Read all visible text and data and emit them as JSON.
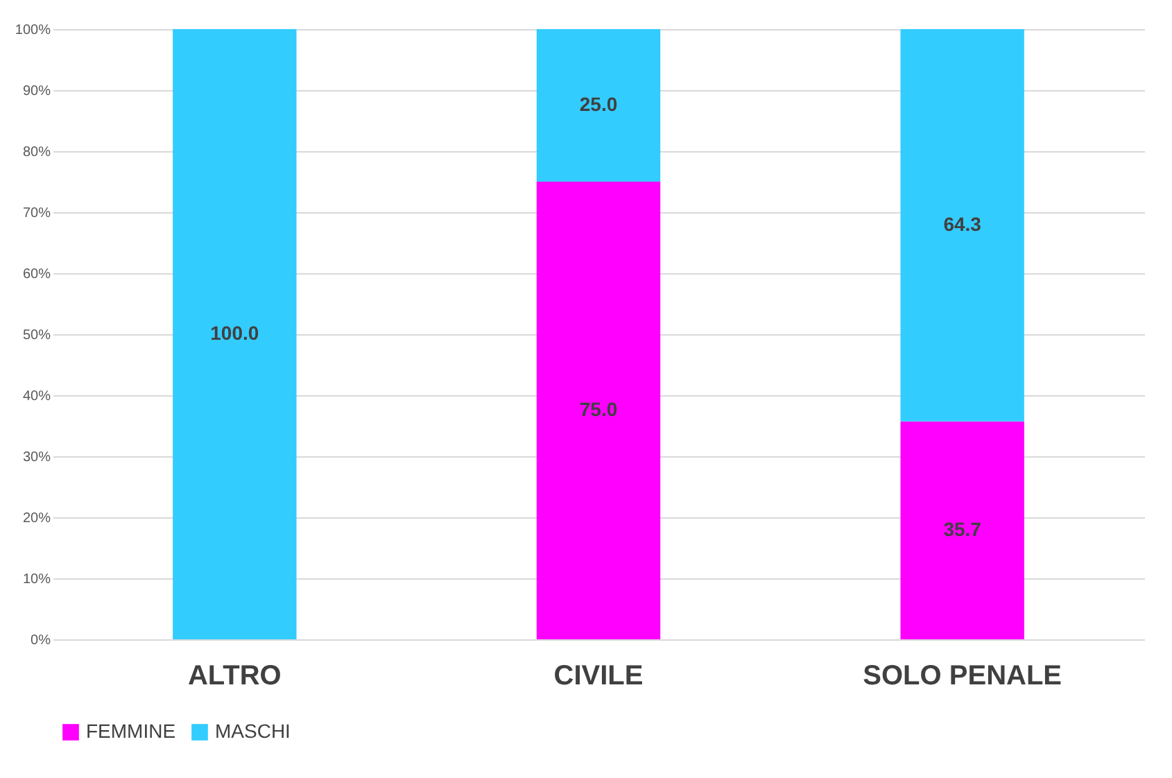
{
  "chart_data": {
    "type": "bar",
    "stacked": true,
    "categories": [
      "ALTRO",
      "CIVILE",
      "SOLO PENALE"
    ],
    "series": [
      {
        "name": "FEMMINE",
        "color": "#ff00ff",
        "values": [
          0,
          75.0,
          35.7
        ],
        "value_labels": [
          null,
          "75.0",
          "35.7"
        ]
      },
      {
        "name": "MASCHI",
        "color": "#33ccff",
        "values": [
          100.0,
          25.0,
          64.3
        ],
        "value_labels": [
          "100.0",
          "25.0",
          "64.3"
        ]
      }
    ],
    "ylim": [
      0,
      100
    ],
    "yticks": [
      {
        "value": 0,
        "label": "0%"
      },
      {
        "value": 10,
        "label": "10%"
      },
      {
        "value": 20,
        "label": "20%"
      },
      {
        "value": 30,
        "label": "30%"
      },
      {
        "value": 40,
        "label": "40%"
      },
      {
        "value": 50,
        "label": "50%"
      },
      {
        "value": 60,
        "label": "60%"
      },
      {
        "value": 70,
        "label": "70%"
      },
      {
        "value": 80,
        "label": "80%"
      },
      {
        "value": 90,
        "label": "90%"
      },
      {
        "value": 100,
        "label": "100%"
      }
    ],
    "grid": "y",
    "legend": "bottom"
  }
}
